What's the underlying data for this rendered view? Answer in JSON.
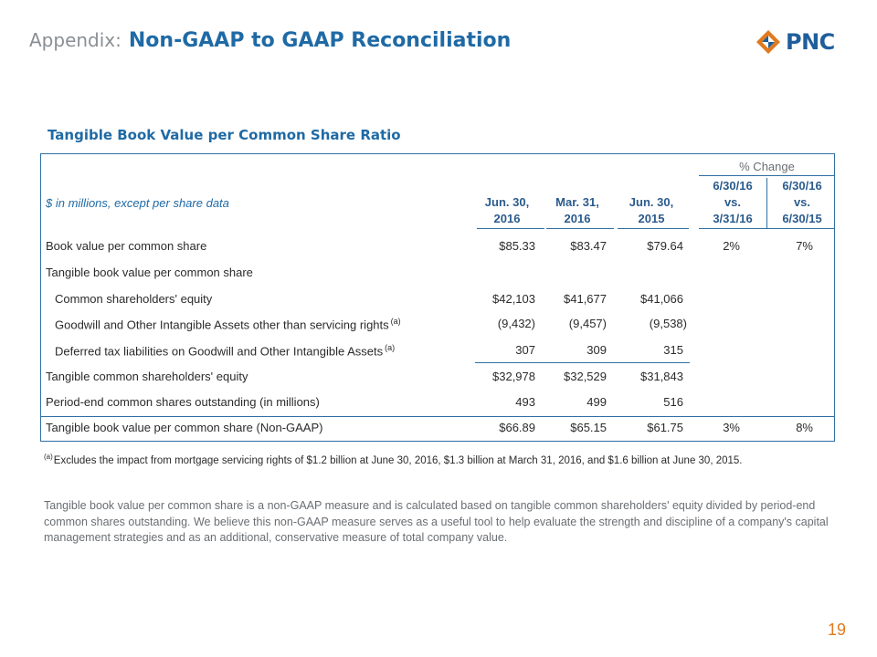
{
  "header": {
    "prefix": "Appendix:",
    "title": "Non-GAAP to GAAP Reconciliation"
  },
  "logo": {
    "text": "PNC",
    "color": "#e07a1f"
  },
  "section_title": "Tangible Book Value per Common Share Ratio",
  "table": {
    "units_label": "$ in millions, except per share data",
    "pct_change_header": "% Change",
    "columns": [
      {
        "line1": "Jun. 30,",
        "line2": "2016"
      },
      {
        "line1": "Mar. 31,",
        "line2": "2016"
      },
      {
        "line1": "Jun. 30,",
        "line2": "2015"
      },
      {
        "line1": "6/30/16",
        "line2": "vs.",
        "line3": "3/31/16"
      },
      {
        "line1": "6/30/16",
        "line2": "vs.",
        "line3": "6/30/15"
      }
    ],
    "rows": [
      {
        "label": "Book value per common share",
        "note": "",
        "values": [
          "$85.33",
          "$83.47",
          "$79.64",
          "2%",
          "7%"
        ]
      },
      {
        "label": "Tangible book value per common share",
        "note": "",
        "values": [
          "",
          "",
          "",
          "",
          ""
        ]
      },
      {
        "label": "Common shareholders' equity",
        "note": "",
        "values": [
          "$42,103",
          "$41,677",
          "$41,066",
          "",
          ""
        ]
      },
      {
        "label": "Goodwill and Other Intangible Assets other than servicing rights",
        "note": "(a)",
        "values": [
          "(9,432)",
          "(9,457)",
          "(9,538)",
          "",
          ""
        ]
      },
      {
        "label": "Deferred tax liabilities on Goodwill and Other Intangible Assets",
        "note": "(a)",
        "values": [
          "307",
          "309",
          "315",
          "",
          ""
        ]
      },
      {
        "label": "Tangible common shareholders' equity",
        "note": "",
        "values": [
          "$32,978",
          "$32,529",
          "$31,843",
          "",
          ""
        ]
      },
      {
        "label": "Period-end common shares outstanding (in millions)",
        "note": "",
        "values": [
          "493",
          "499",
          "516",
          "",
          ""
        ]
      },
      {
        "label": "Tangible book value per common share (Non-GAAP)",
        "note": "",
        "values": [
          "$66.89",
          "$65.15",
          "$61.75",
          "3%",
          "8%"
        ]
      }
    ]
  },
  "footnote": {
    "marker": "(a)",
    "text": "Excludes the impact from mortgage servicing rights of $1.2 billion at June 30, 2016, $1.3 billion at March 31, 2016, and $1.6 billion at June 30, 2015."
  },
  "paragraph": "Tangible book value per common share is a non-GAAP measure and is calculated based on tangible common shareholders' equity divided by period-end common shares outstanding. We believe this non-GAAP measure serves as a useful tool to help evaluate the strength and discipline of a company's capital management strategies and as an additional, conservative measure of total company value.",
  "page_number": "19"
}
